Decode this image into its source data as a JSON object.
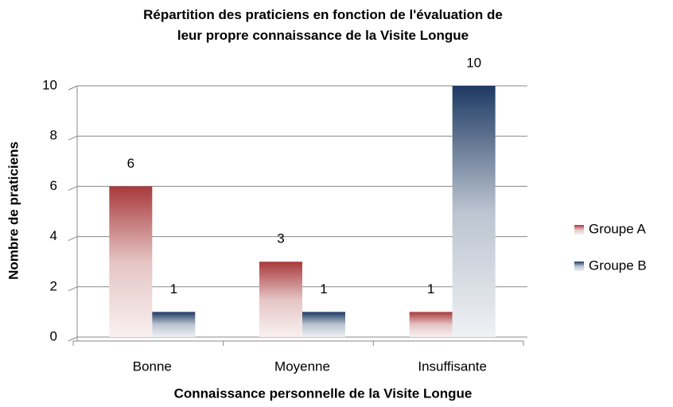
{
  "chart_data": {
    "type": "bar",
    "title": "Répartition des praticiens en fonction de l'évaluation de leur propre connaissance de la Visite Longue",
    "x_label": "Connaissance personnelle de la Visite Longue",
    "y_label": "Nombre de praticiens",
    "categories": [
      "Bonne",
      "Moyenne",
      "Insuffisante"
    ],
    "series": [
      {
        "name": "Groupe A",
        "color": "#a8393b",
        "values": [
          6,
          3,
          1
        ]
      },
      {
        "name": "Groupe B",
        "color": "#1d3a63",
        "values": [
          1,
          1,
          10
        ]
      }
    ],
    "ylim": [
      0,
      10
    ],
    "yticks": [
      0,
      2,
      4,
      6,
      8,
      10
    ],
    "grid": true,
    "legend": "right"
  }
}
